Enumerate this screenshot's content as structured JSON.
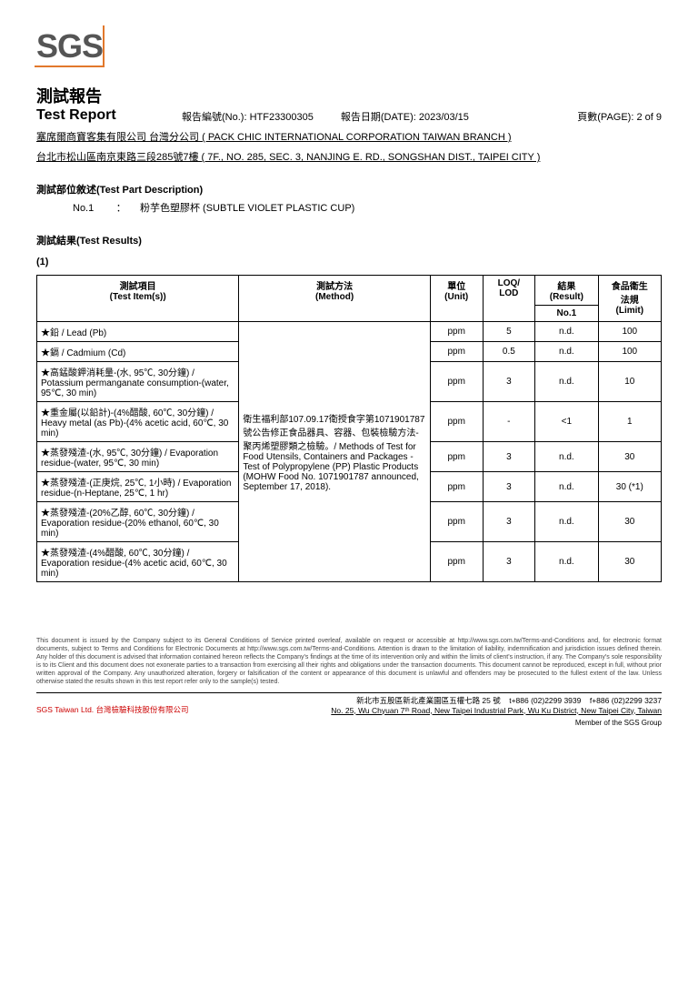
{
  "logo": "SGS",
  "title_zh": "測試報告",
  "title_en": "Test Report",
  "report_no_label": "報告編號(No.):",
  "report_no": "HTF23300305",
  "report_date_label": "報告日期(DATE):",
  "report_date": "2023/03/15",
  "page_label": "頁數(PAGE):",
  "page": "2 of 9",
  "company_line1": "塞席爾商寶客集有限公司 台灣分公司 ( PACK CHIC INTERNATIONAL CORPORATION TAIWAN BRANCH )",
  "company_line2": "台北市松山區南京東路三段285號7樓 ( 7F., NO. 285, SEC. 3, NANJING E. RD., SONGSHAN DIST., TAIPEI CITY )",
  "part_desc_hdr": "測試部位敘述(Test Part Description)",
  "part_no": "No.1",
  "part_colon": "：",
  "part_name": "粉芋色塑膠杯 (SUBTLE VIOLET PLASTIC CUP)",
  "results_hdr": "測試結果(Test Results)",
  "table_index": "(1)",
  "headers": {
    "item": "測試項目\n(Test Item(s))",
    "method": "測試方法\n(Method)",
    "unit": "單位\n(Unit)",
    "loq": "LOQ/\nLOD",
    "result": "結果\n(Result)",
    "result_sub": "No.1",
    "limit": "食品衛生\n法規\n(Limit)"
  },
  "method_text": "衛生福利部107.09.17衛授食字第1071901787號公告修正食品器具、容器、包裝檢驗方法-聚丙烯塑膠類之檢驗。/ Methods of Test for Food Utensils, Containers and Packages - Test of Polypropylene (PP) Plastic Products (MOHW Food No. 1071901787 announced, September 17, 2018).",
  "rows": [
    {
      "item": "★鉛 / Lead (Pb)",
      "unit": "ppm",
      "loq": "5",
      "result": "n.d.",
      "limit": "100"
    },
    {
      "item": "★鎘 / Cadmium (Cd)",
      "unit": "ppm",
      "loq": "0.5",
      "result": "n.d.",
      "limit": "100"
    },
    {
      "item": "★高錳酸鉀消耗量-(水, 95℃, 30分鐘) / Potassium permanganate consumption-(water, 95℃, 30 min)",
      "unit": "ppm",
      "loq": "3",
      "result": "n.d.",
      "limit": "10"
    },
    {
      "item": "★重金屬(以鉛計)-(4%醋酸, 60℃, 30分鐘) / Heavy metal (as Pb)-(4% acetic acid, 60℃, 30 min)",
      "unit": "ppm",
      "loq": "-",
      "result": "<1",
      "limit": "1"
    },
    {
      "item": "★蒸發殘渣-(水, 95℃, 30分鐘) / Evaporation residue-(water, 95℃, 30 min)",
      "unit": "ppm",
      "loq": "3",
      "result": "n.d.",
      "limit": "30"
    },
    {
      "item": "★蒸發殘渣-(正庚烷, 25℃, 1小時) / Evaporation residue-(n-Heptane, 25℃, 1 hr)",
      "unit": "ppm",
      "loq": "3",
      "result": "n.d.",
      "limit": "30 (*1)"
    },
    {
      "item": "★蒸發殘渣-(20%乙醇, 60℃, 30分鐘) / Evaporation residue-(20% ethanol, 60℃, 30 min)",
      "unit": "ppm",
      "loq": "3",
      "result": "n.d.",
      "limit": "30"
    },
    {
      "item": "★蒸發殘渣-(4%醋酸, 60℃, 30分鐘) / Evaporation residue-(4% acetic acid, 60℃, 30 min)",
      "unit": "ppm",
      "loq": "3",
      "result": "n.d.",
      "limit": "30"
    }
  ],
  "fine_print": "This document is issued by the Company subject to its General Conditions of Service printed overleaf, available on request or accessible at http://www.sgs.com.tw/Terms-and-Conditions and, for electronic format documents, subject to Terms and Conditions for Electronic Documents at http://www.sgs.com.tw/Terms-and-Conditions. Attention is drawn to the limitation of liability, indemnification and jurisdiction issues defined therein. Any holder of this document is advised that information contained hereon reflects the Company's findings at the time of its intervention only and within the limits of client's instruction, if any. The Company's sole responsibility is to its Client and this document does not exonerate parties to a transaction from exercising all their rights and obligations under the transaction documents. This document cannot be reproduced, except in full, without prior written approval of the Company. Any unauthorized alteration, forgery or falsification of the content or appearance of this document is unlawful and offenders may be prosecuted to the fullest extent of the law. Unless otherwise stated the results shown in this test report refer only to the sample(s) tested.",
  "footer_company_red": "SGS Taiwan Ltd.",
  "footer_company_zh": "台灣檢驗科技股份有限公司",
  "footer_addr_zh": "新北市五股區新北產業園區五權七路 25 號",
  "footer_tel": "t+886 (02)2299 3939",
  "footer_fax": "f+886 (02)2299 3237",
  "footer_addr_en": "No. 25, Wu Chyuan 7ᵗʰ Road, New Taipei Industrial Park, Wu Ku District, New Taipei City, Taiwan",
  "member": "Member of the SGS Group"
}
